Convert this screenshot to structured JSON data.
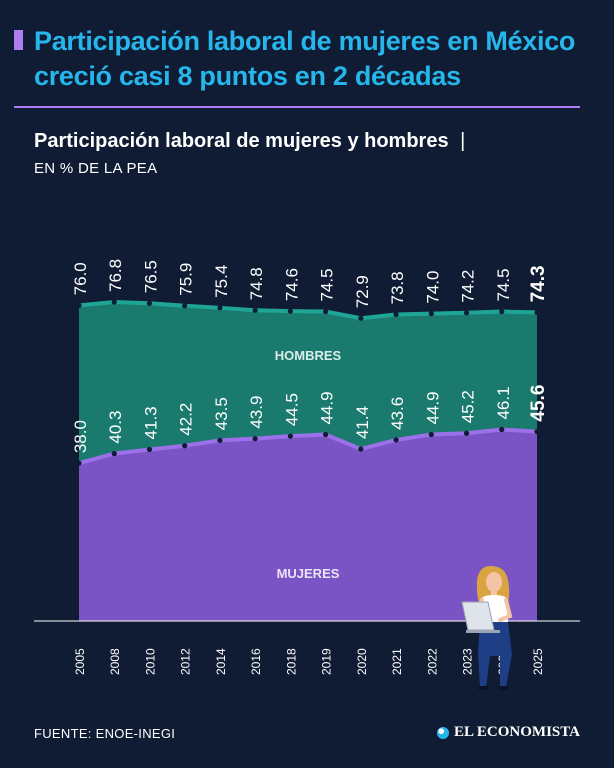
{
  "headline": "Participación laboral de mujeres en México creció casi 8 puntos en 2 décadas",
  "chart_title": "Participación laboral de mujeres y hombres",
  "chart_title_sep": "|",
  "chart_subtitle": "EN % DE LA PEA",
  "source": "FUENTE: ENOE-INEGI",
  "brand": "EL ECONOMISTA",
  "colors": {
    "background": "#0f1c33",
    "headline": "#27b6ec",
    "accent": "#b07cf2",
    "hombres_fill": "#1a7a6e",
    "hombres_line": "#1fa596",
    "mujeres_fill": "#7a54c4",
    "mujeres_line": "#9b70e8"
  },
  "chart_data": {
    "type": "area",
    "categories": [
      "2005",
      "2008",
      "2010",
      "2012",
      "2014",
      "2016",
      "2018",
      "2019",
      "2020",
      "2021",
      "2022",
      "2023",
      "2024",
      "2025"
    ],
    "series": [
      {
        "name": "HOMBRES",
        "values": [
          76.0,
          76.8,
          76.5,
          75.9,
          75.4,
          74.8,
          74.6,
          74.5,
          72.9,
          73.8,
          74.0,
          74.2,
          74.5,
          74.3
        ],
        "labels": [
          "76.0",
          "76.8",
          "76.5",
          "75.9",
          "75.4",
          "74.8",
          "74.6",
          "74.5",
          "72.9",
          "73.8",
          "74.0",
          "74.2",
          "74.5",
          "74.3"
        ]
      },
      {
        "name": "MUJERES",
        "values": [
          38.0,
          40.3,
          41.3,
          42.2,
          43.5,
          43.9,
          44.5,
          44.9,
          41.4,
          43.6,
          44.9,
          45.2,
          46.1,
          45.6
        ],
        "labels": [
          "38.0",
          "40.3",
          "41.3",
          "42.2",
          "43.5",
          "43.9",
          "44.5",
          "44.9",
          "41.4",
          "43.6",
          "44.9",
          "45.2",
          "46.1",
          "45.6"
        ]
      }
    ],
    "ylim": [
      0,
      76.8
    ],
    "xlabel": "",
    "ylabel": ""
  }
}
